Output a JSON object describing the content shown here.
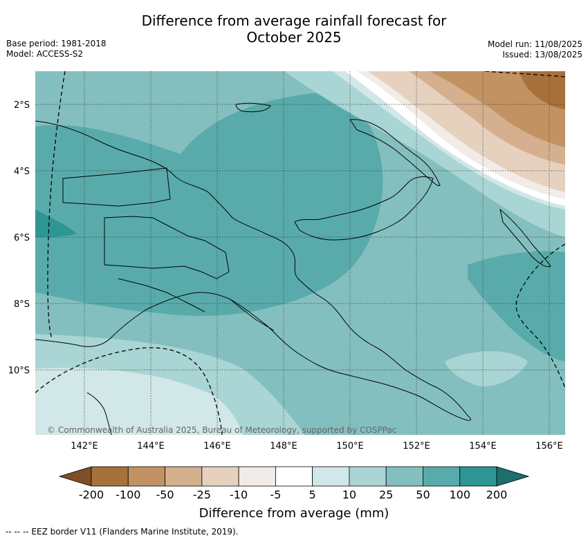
{
  "title_line1": "Difference from average rainfall forecast for",
  "title_line2": "October 2025",
  "left_meta": {
    "base_period": "Base period: 1981-2018",
    "model": "Model: ACCESS-S2"
  },
  "right_meta": {
    "model_run": "Model run: 11/08/2025",
    "issued": "Issued: 13/08/2025"
  },
  "lat_labels": [
    "2°S",
    "4°S",
    "6°S",
    "8°S",
    "10°S"
  ],
  "lon_labels": [
    "142°E",
    "144°E",
    "146°E",
    "148°E",
    "150°E",
    "152°E",
    "154°E",
    "156°E"
  ],
  "copyright": "© Commonwealth of Australia 2025, Bureau of Meteorology, supported by COSPPac",
  "colorbar": {
    "ticks": [
      "-200",
      "-100",
      "-50",
      "-25",
      "-10",
      "-5",
      "5",
      "10",
      "25",
      "50",
      "100",
      "200"
    ],
    "colors": [
      "#7d5027",
      "#a8703b",
      "#c39263",
      "#d4b08f",
      "#e6d1bf",
      "#f1ece8",
      "#ffffff",
      "#d2e7e7",
      "#aad5d5",
      "#84bfbf",
      "#59abab",
      "#2e9595",
      "#1d6e6e"
    ],
    "label": "Difference from average (mm)"
  },
  "footnote": "--  --  -- EEZ border V11 (Flanders Marine Institute, 2019)."
}
